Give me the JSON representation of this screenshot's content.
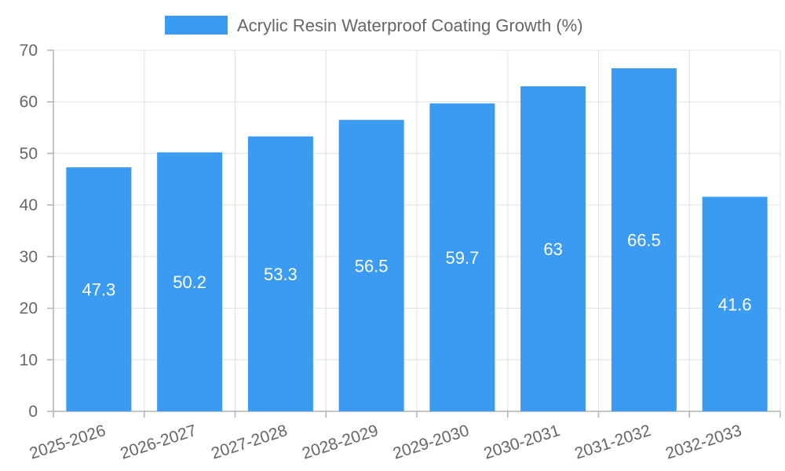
{
  "chart_data": {
    "type": "bar",
    "title": "",
    "xlabel": "",
    "ylabel": "",
    "legend": {
      "position": "top",
      "entries": [
        "Acrylic Resin Waterproof Coating Growth (%)"
      ]
    },
    "categories": [
      "2025-2026",
      "2026-2027",
      "2027-2028",
      "2028-2029",
      "2029-2030",
      "2030-2031",
      "2031-2032",
      "2032-2033"
    ],
    "series": [
      {
        "name": "Acrylic Resin Waterproof Coating Growth (%)",
        "values": [
          47.3,
          50.2,
          53.3,
          56.5,
          59.7,
          63,
          66.5,
          41.6
        ],
        "color": "#3a9bf0"
      }
    ],
    "data_labels": [
      "47.3",
      "50.2",
      "53.3",
      "56.5",
      "59.7",
      "63",
      "66.5",
      "41.6"
    ],
    "ylim": [
      0,
      70
    ],
    "y_ticks": [
      "0",
      "10",
      "20",
      "30",
      "40",
      "50",
      "60",
      "70"
    ],
    "grid": true
  }
}
